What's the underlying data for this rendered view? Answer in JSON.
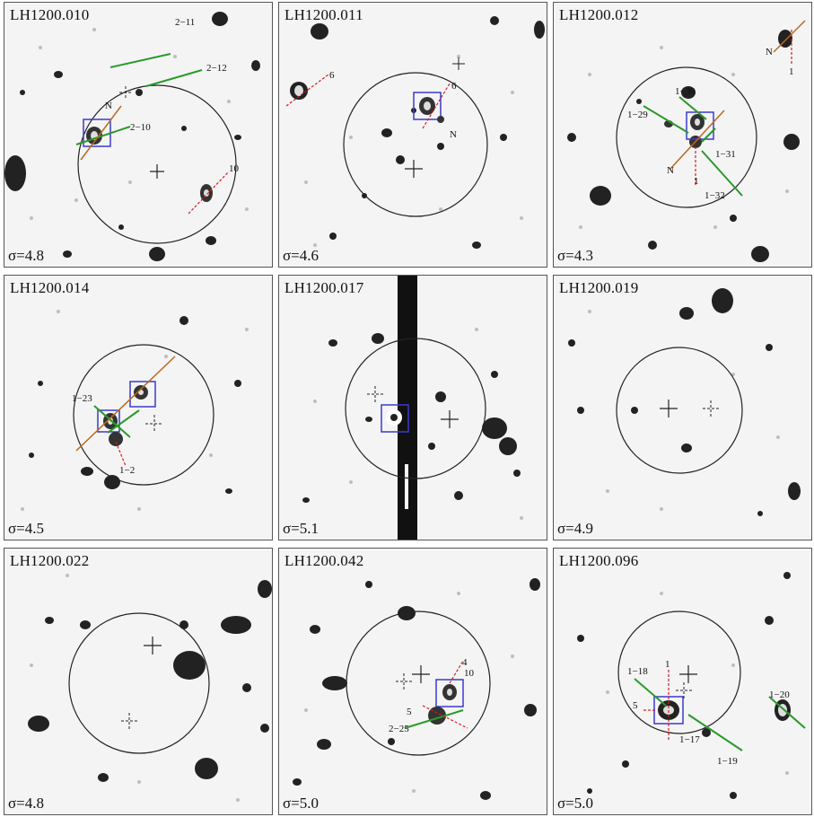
{
  "panels": [
    {
      "id": "p1",
      "title": "LH1200.010",
      "sigma": "σ=4.8",
      "labels": [
        "N",
        "2−11",
        "2−12",
        "2−10",
        "10"
      ]
    },
    {
      "id": "p2",
      "title": "LH1200.011",
      "sigma": "σ=4.6",
      "labels": [
        "6",
        "6",
        "N"
      ]
    },
    {
      "id": "p3",
      "title": "LH1200.012",
      "sigma": "σ=4.3",
      "labels": [
        "N",
        "1",
        "1−30",
        "1−29",
        "1−31",
        "N",
        "1",
        "1−32"
      ]
    },
    {
      "id": "p4",
      "title": "LH1200.014",
      "sigma": "σ=4.5",
      "labels": [
        "1−23",
        "1−2"
      ]
    },
    {
      "id": "p5",
      "title": "LH1200.017",
      "sigma": "σ=5.1",
      "labels": []
    },
    {
      "id": "p6",
      "title": "LH1200.019",
      "sigma": "σ=4.9",
      "labels": []
    },
    {
      "id": "p7",
      "title": "LH1200.022",
      "sigma": "σ=4.8",
      "labels": []
    },
    {
      "id": "p8",
      "title": "LH1200.042",
      "sigma": "σ=5.0",
      "labels": [
        "4",
        "10",
        "5",
        "2−25"
      ]
    },
    {
      "id": "p9",
      "title": "LH1200.096",
      "sigma": "σ=5.0",
      "labels": [
        "1−18",
        "1",
        "5",
        "1−20",
        "1−17",
        "1−19"
      ]
    }
  ],
  "colors": {
    "background": "#ffffff",
    "circle": "#222222",
    "cross": "#222222",
    "box": "#3a3ad0",
    "green_line": "#2a9a2a",
    "red_dashed": "#d02020",
    "orange_line": "#b86a20"
  }
}
